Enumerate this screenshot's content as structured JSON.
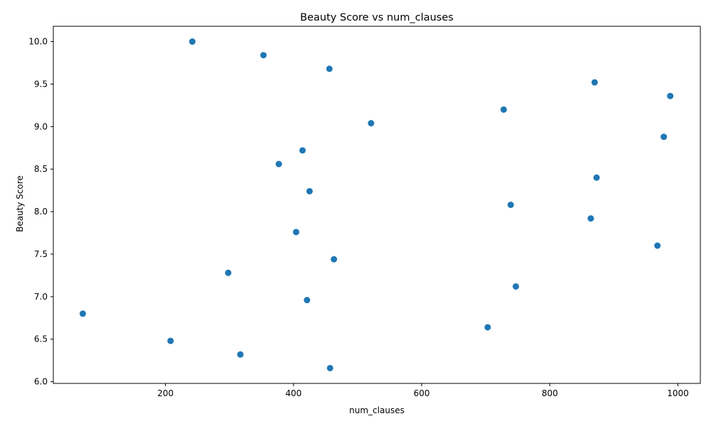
{
  "chart_data": {
    "type": "scatter",
    "title": "Beauty Score vs num_clauses",
    "xlabel": "num_clauses",
    "ylabel": "Beauty Score",
    "xlim": [
      25,
      1035
    ],
    "ylim": [
      5.98,
      10.18
    ],
    "xticks": [
      200,
      400,
      600,
      800,
      1000
    ],
    "yticks": [
      6.0,
      6.5,
      7.0,
      7.5,
      8.0,
      8.5,
      9.0,
      9.5,
      10.0
    ],
    "grid": false,
    "marker_color": "#1f77b4",
    "points": [
      {
        "x": 242,
        "y": 10.0
      },
      {
        "x": 353,
        "y": 9.84
      },
      {
        "x": 456,
        "y": 9.68
      },
      {
        "x": 870,
        "y": 9.52
      },
      {
        "x": 988,
        "y": 9.36
      },
      {
        "x": 728,
        "y": 9.2
      },
      {
        "x": 521,
        "y": 9.04
      },
      {
        "x": 978,
        "y": 8.88
      },
      {
        "x": 414,
        "y": 8.72
      },
      {
        "x": 377,
        "y": 8.56
      },
      {
        "x": 873,
        "y": 8.4
      },
      {
        "x": 425,
        "y": 8.24
      },
      {
        "x": 739,
        "y": 8.08
      },
      {
        "x": 864,
        "y": 7.92
      },
      {
        "x": 404,
        "y": 7.76
      },
      {
        "x": 968,
        "y": 7.6
      },
      {
        "x": 463,
        "y": 7.44
      },
      {
        "x": 298,
        "y": 7.28
      },
      {
        "x": 747,
        "y": 7.12
      },
      {
        "x": 421,
        "y": 6.96
      },
      {
        "x": 71,
        "y": 6.8
      },
      {
        "x": 703,
        "y": 6.64
      },
      {
        "x": 208,
        "y": 6.48
      },
      {
        "x": 317,
        "y": 6.32
      },
      {
        "x": 457,
        "y": 6.16
      }
    ]
  }
}
